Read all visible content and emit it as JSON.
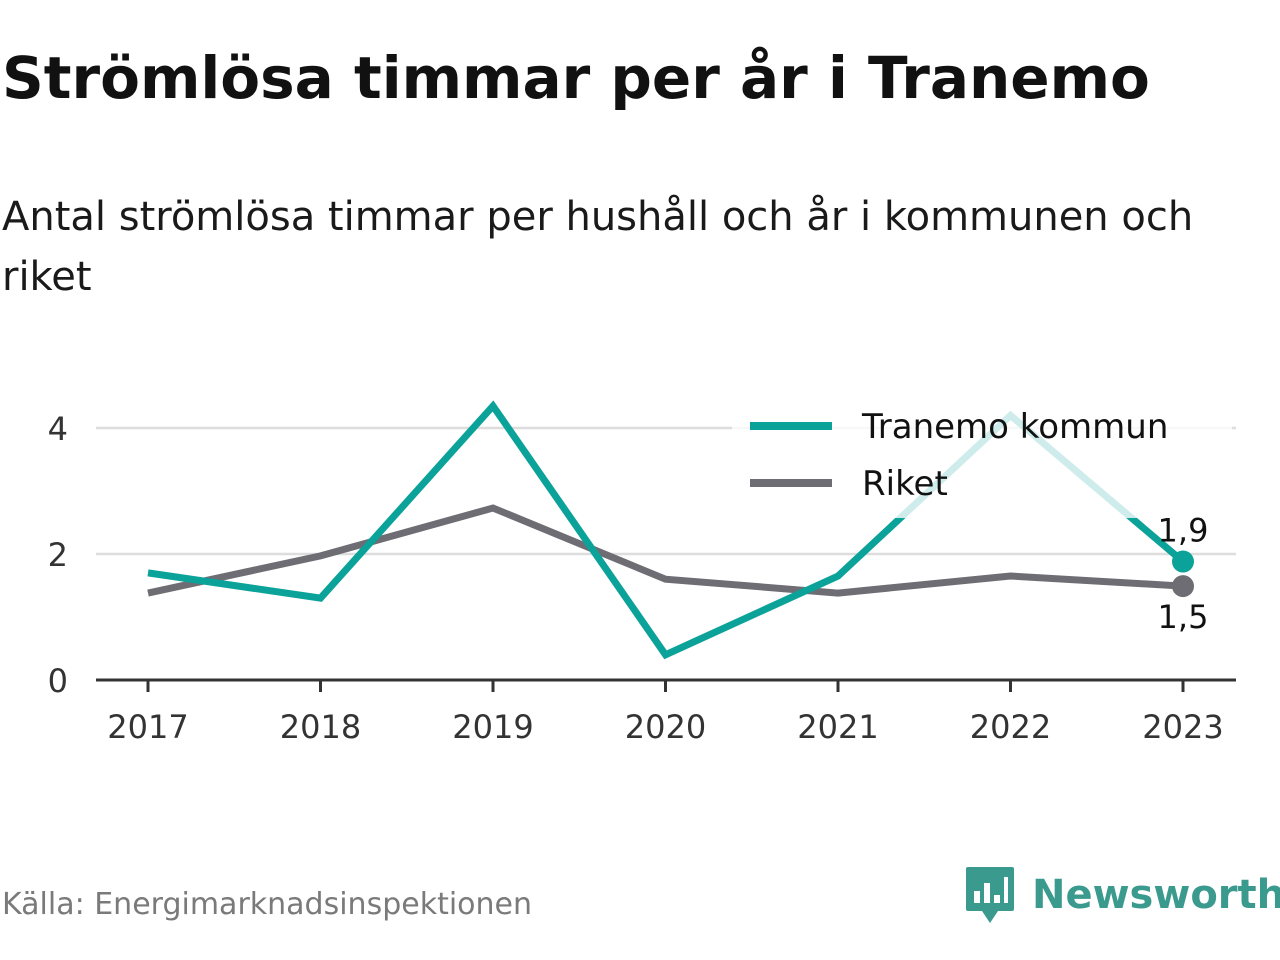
{
  "header": {
    "title": "Strömlösa timmar per år i Tranemo",
    "subtitle": "Antal strömlösa timmar per hushåll och år i kommunen och riket"
  },
  "footer": {
    "source": "Källa: Energimarknadsinspektionen",
    "brand": "Newsworthy",
    "brand_icon": "bar-chart-speech-bubble-icon"
  },
  "colors": {
    "tranemo": "#0ba29a",
    "riket": "#6e6d74",
    "grid": "#dddddd",
    "axis": "#333333",
    "brand": "#3b9a8e"
  },
  "chart_data": {
    "type": "line",
    "categories": [
      "2017",
      "2018",
      "2019",
      "2020",
      "2021",
      "2022",
      "2023"
    ],
    "series": [
      {
        "name": "Tranemo kommun",
        "values": [
          1.7,
          1.3,
          4.35,
          0.4,
          1.65,
          4.2,
          1.88
        ],
        "color": "#0ba29a",
        "end_label": "1,9"
      },
      {
        "name": "Riket",
        "values": [
          1.38,
          1.97,
          2.73,
          1.6,
          1.38,
          1.65,
          1.49
        ],
        "color": "#6e6d74",
        "end_label": "1,5"
      }
    ],
    "y_ticks": [
      "0",
      "2",
      "4"
    ],
    "ylim": [
      0,
      4.5
    ],
    "grid": true,
    "legend": "top-right"
  }
}
